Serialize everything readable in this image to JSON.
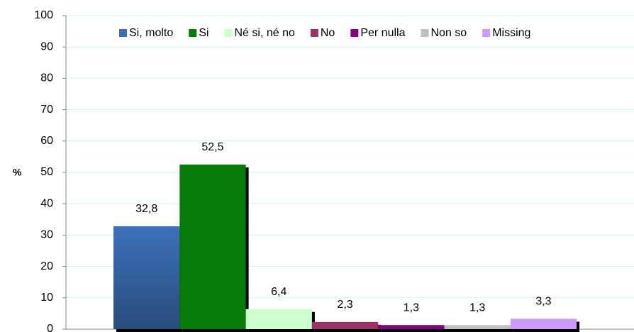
{
  "chart_data": {
    "type": "bar",
    "y_label": "%",
    "categories": [
      null
    ],
    "series": [
      {
        "name": "Si, molto",
        "color": "#3a6fb8",
        "values": [
          32.8
        ],
        "value_labels": [
          "32,8"
        ]
      },
      {
        "name": "Si",
        "color": "#087a08",
        "values": [
          52.5
        ],
        "value_labels": [
          "52,5"
        ]
      },
      {
        "name": "Né si, né no",
        "color": "#ccffcc",
        "values": [
          6.4
        ],
        "value_labels": [
          "6,4"
        ]
      },
      {
        "name": "No",
        "color": "#993366",
        "values": [
          2.3
        ],
        "value_labels": [
          "2,3"
        ]
      },
      {
        "name": "Per nulla",
        "color": "#800080",
        "values": [
          1.3
        ],
        "value_labels": [
          "1,3"
        ]
      },
      {
        "name": "Non so",
        "color": "#c0c0c0",
        "values": [
          1.3
        ],
        "value_labels": [
          "1,3"
        ]
      },
      {
        "name": "Missing",
        "color": "#cc99ff",
        "values": [
          3.3
        ],
        "value_labels": [
          "3,3"
        ]
      }
    ],
    "ylim": [
      0,
      100
    ],
    "yticks": [
      0,
      10,
      20,
      30,
      40,
      50,
      60,
      70,
      80,
      90,
      100
    ],
    "grid": true,
    "legend": "top"
  }
}
